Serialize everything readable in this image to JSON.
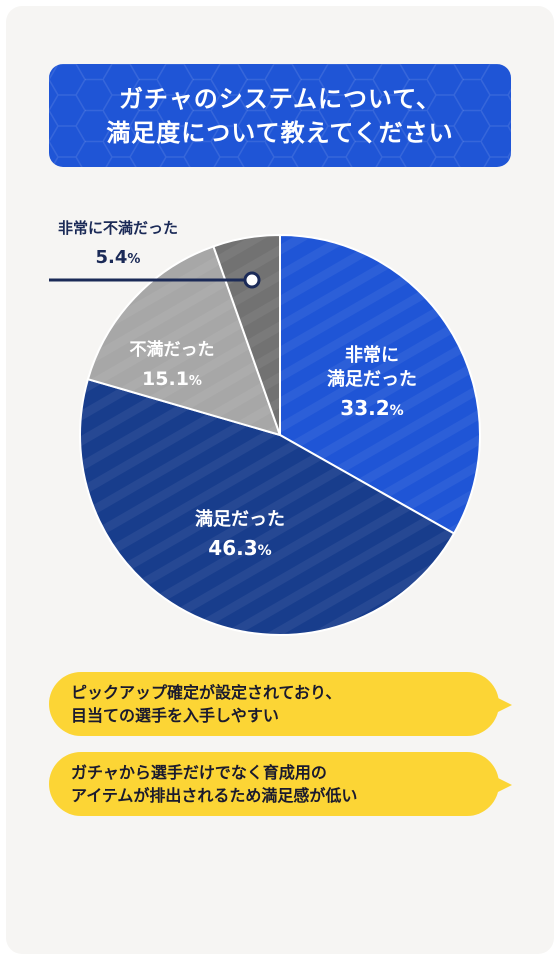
{
  "title": {
    "line1": "ガチャのシステムについて、",
    "line2": "満足度について教えてください"
  },
  "colors": {
    "very_satisfied": "#1f55d6",
    "satisfied": "#183d8c",
    "dissatisfied": "#a7a7a7",
    "very_dissatisfied": "#727272",
    "bubble": "#fcd535",
    "callout_line": "#1b2a57"
  },
  "chart_data": {
    "type": "pie",
    "unit": "%",
    "slices": [
      {
        "label_lines": [
          "非常に",
          "満足だった"
        ],
        "value": 33.2,
        "value_text": "33.2",
        "color": "#1f55d6"
      },
      {
        "label_lines": [
          "満足だった"
        ],
        "value": 46.3,
        "value_text": "46.3",
        "color": "#183d8c"
      },
      {
        "label_lines": [
          "不満だった"
        ],
        "value": 15.1,
        "value_text": "15.1",
        "color": "#a7a7a7"
      },
      {
        "label_lines": [
          "非常に不満だった"
        ],
        "value": 5.4,
        "value_text": "5.4",
        "color": "#727272"
      }
    ]
  },
  "comments": [
    {
      "lines": [
        "ピックアップ確定が設定されており、",
        "目当ての選手を入手しやすい"
      ]
    },
    {
      "lines": [
        "ガチャから選手だけでなく育成用の",
        "アイテムが排出されるため満足感が低い"
      ]
    }
  ]
}
